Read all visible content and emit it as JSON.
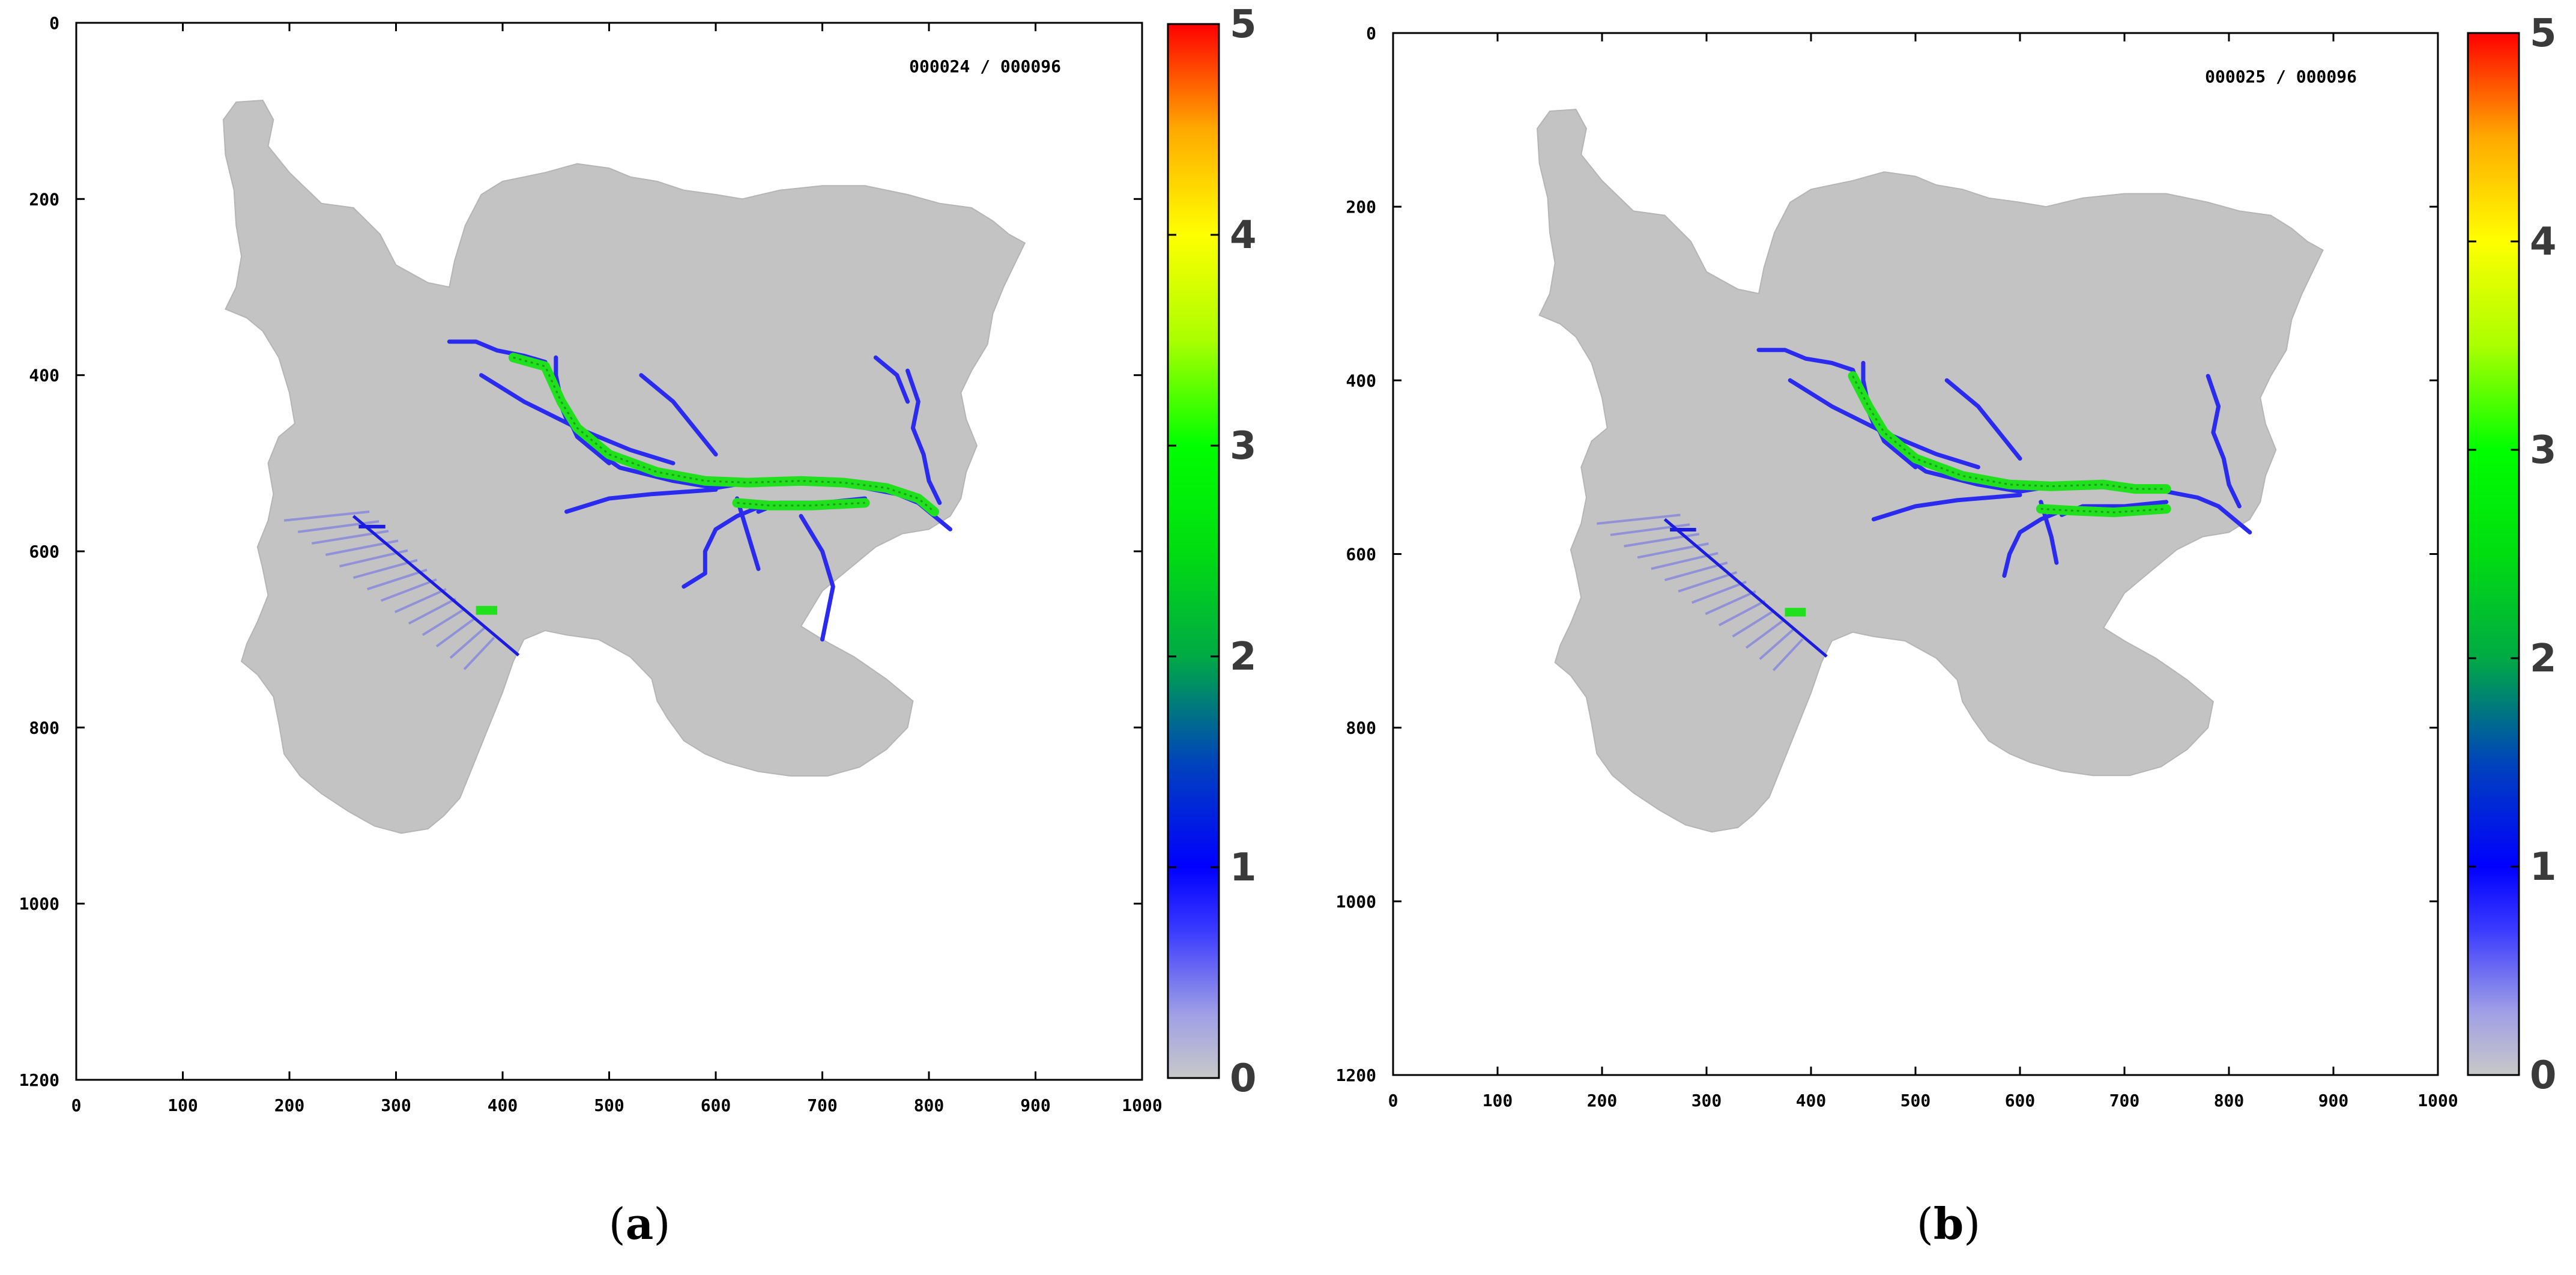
{
  "colors": {
    "land": "#c3c3c3",
    "water_shallow": "#2b2bf0",
    "water_mid": "#21e01d",
    "frame": "#000000"
  },
  "chart_data": [
    {
      "type": "heatmap",
      "panel_label": "a",
      "counter": "000024 / 000096",
      "xlim": [
        0,
        1000
      ],
      "ylim": [
        0,
        1200
      ],
      "xticks": [
        "0",
        "100",
        "200",
        "300",
        "400",
        "500",
        "600",
        "700",
        "800",
        "900",
        "1000"
      ],
      "yticks": [
        "0",
        "200",
        "400",
        "600",
        "800",
        "1000",
        "1200"
      ],
      "colorbar": {
        "min": 0,
        "max": 5,
        "ticks": [
          "0",
          "1",
          "2",
          "3",
          "4",
          "5"
        ]
      }
    },
    {
      "type": "heatmap",
      "panel_label": "b",
      "counter": "000025 / 000096",
      "xlim": [
        0,
        1000
      ],
      "ylim": [
        0,
        1200
      ],
      "xticks": [
        "0",
        "100",
        "200",
        "300",
        "400",
        "500",
        "600",
        "700",
        "800",
        "900",
        "1000"
      ],
      "yticks": [
        "0",
        "200",
        "400",
        "600",
        "800",
        "1000",
        "1200"
      ],
      "colorbar": {
        "min": 0,
        "max": 5,
        "ticks": [
          "0",
          "1",
          "2",
          "3",
          "4",
          "5"
        ]
      }
    }
  ]
}
